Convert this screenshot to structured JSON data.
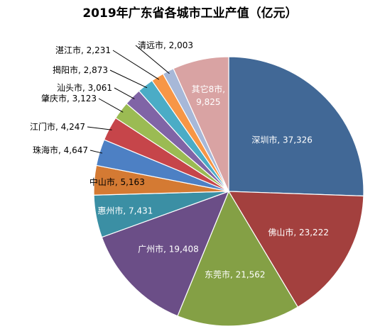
{
  "chart_data": {
    "type": "pie",
    "title": "2019年广东省各城市工业产值（亿元）",
    "start_angle": "12 o'clock, clockwise",
    "slices": [
      {
        "label": "深圳市, 37,326",
        "name": "深圳市",
        "value": 37326,
        "color": "#416896",
        "label_pos": "inside"
      },
      {
        "label": "佛山市, 23,222",
        "name": "佛山市",
        "value": 23222,
        "color": "#a3403e",
        "label_pos": "inside"
      },
      {
        "label": "东莞市, 21,562",
        "name": "东莞市",
        "value": 21562,
        "color": "#84a045",
        "label_pos": "inside"
      },
      {
        "label": "广州市, 19,408",
        "name": "广州市",
        "value": 19408,
        "color": "#6b4e87",
        "label_pos": "inside"
      },
      {
        "label": "惠州市, 7,431",
        "name": "惠州市",
        "value": 7431,
        "color": "#3b8fa4",
        "label_pos": "inside"
      },
      {
        "label": "中山市, 5,163",
        "name": "中山市",
        "value": 5163,
        "color": "#d47a33",
        "label_pos": "inside-dark"
      },
      {
        "label": "珠海市, 4,647",
        "name": "珠海市",
        "value": 4647,
        "color": "#4d80c4",
        "label_pos": "outside"
      },
      {
        "label": "江门市, 4,247",
        "name": "江门市",
        "value": 4247,
        "color": "#c6454a",
        "label_pos": "outside"
      },
      {
        "label": "肇庆市, 3,123",
        "name": "肇庆市",
        "value": 3123,
        "color": "#9bbb53",
        "label_pos": "outside"
      },
      {
        "label": "汕头市, 3,061",
        "name": "汕头市",
        "value": 3061,
        "color": "#8064a6",
        "label_pos": "outside"
      },
      {
        "label": "揭阳市, 2,873",
        "name": "揭阳市",
        "value": 2873,
        "color": "#4bacc6",
        "label_pos": "outside"
      },
      {
        "label": "湛江市, 2,231",
        "name": "湛江市",
        "value": 2231,
        "color": "#f79646",
        "label_pos": "outside"
      },
      {
        "label": "清远市, 2,003",
        "name": "清远市",
        "value": 2003,
        "color": "#a7b8d8",
        "label_pos": "outside"
      },
      {
        "label": "其它8市, 9,825",
        "name": "其它8市",
        "value": 9825,
        "color": "#d9a3a3",
        "label_pos": "inside-two-line",
        "label_lines": [
          "其它8市,",
          "9,825"
        ]
      }
    ]
  }
}
